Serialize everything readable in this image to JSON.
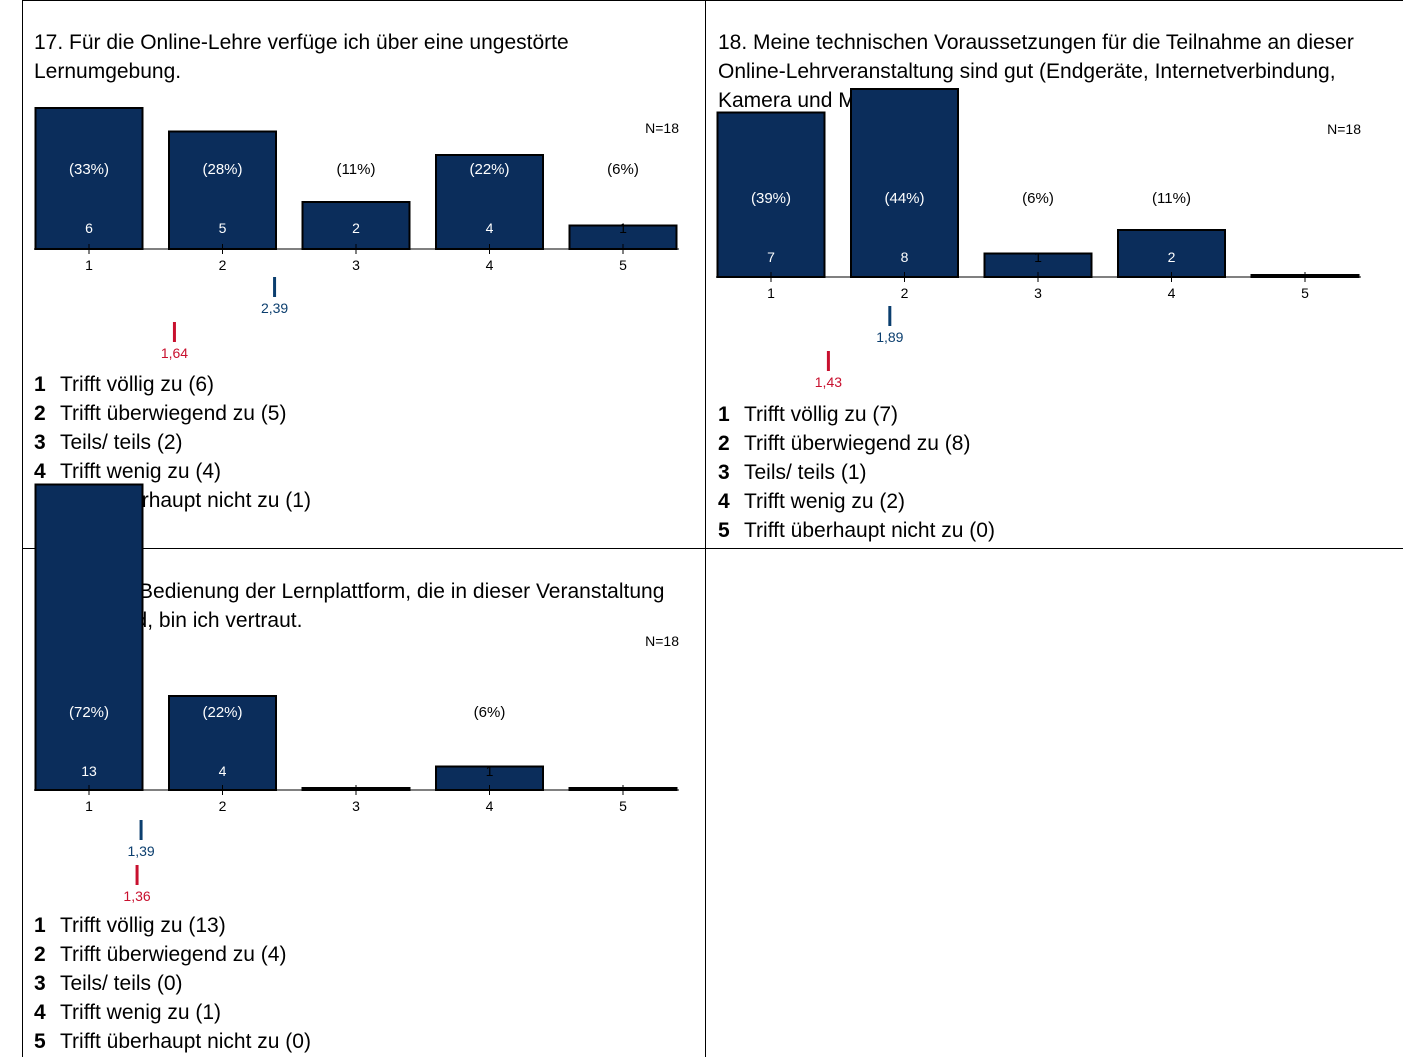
{
  "colors": {
    "bar": "#0b2d5b",
    "mean": "#0b3e6e",
    "median": "#c8102e"
  },
  "panels": [
    {
      "id": "q17",
      "title": "17. Für die Online-Lehre verfüge ich über eine ungestörte Lernumgebung.",
      "n_label": "N=18",
      "chart_data": {
        "type": "bar",
        "categories": [
          "1",
          "2",
          "3",
          "4",
          "5"
        ],
        "values": [
          6,
          5,
          2,
          4,
          1
        ],
        "count_labels": [
          "6",
          "5",
          "2",
          "4",
          "1"
        ],
        "percent_labels": [
          "(33%)",
          "(28%)",
          "(11%)",
          "(22%)",
          "(6%)"
        ],
        "ylim": [
          0,
          18
        ],
        "mean": 2.39,
        "mean_label": "2,39",
        "median": 1.64,
        "median_label": "1,64"
      },
      "legend": [
        {
          "num": "1",
          "text": "Trifft völlig zu (6)"
        },
        {
          "num": "2",
          "text": "Trifft überwiegend zu (5)"
        },
        {
          "num": "3",
          "text": "Teils/ teils (2)"
        },
        {
          "num": "4",
          "text": "Trifft wenig zu (4)"
        },
        {
          "num": "5",
          "text": "Trifft überhaupt nicht zu (1)"
        }
      ]
    },
    {
      "id": "q18",
      "title": "18. Meine technischen Voraussetzungen für die Teilnahme an dieser Online-Lehrveranstaltung sind gut (Endgeräte, Internetverbindung, Kamera und Mikrofon).",
      "n_label": "N=18",
      "chart_data": {
        "type": "bar",
        "categories": [
          "1",
          "2",
          "3",
          "4",
          "5"
        ],
        "values": [
          7,
          8,
          1,
          2,
          0
        ],
        "count_labels": [
          "7",
          "8",
          "1",
          "2",
          ""
        ],
        "percent_labels": [
          "(39%)",
          "(44%)",
          "(6%)",
          "(11%)",
          ""
        ],
        "ylim": [
          0,
          18
        ],
        "mean": 1.89,
        "mean_label": "1,89",
        "median": 1.43,
        "median_label": "1,43"
      },
      "legend": [
        {
          "num": "1",
          "text": "Trifft völlig zu (7)"
        },
        {
          "num": "2",
          "text": "Trifft überwiegend zu (8)"
        },
        {
          "num": "3",
          "text": "Teils/ teils (1)"
        },
        {
          "num": "4",
          "text": "Trifft wenig zu (2)"
        },
        {
          "num": "5",
          "text": "Trifft überhaupt nicht zu (0)"
        }
      ]
    },
    {
      "id": "q19",
      "title": "19. Mit der Bedienung der Lernplattform, die in dieser Veranstaltung genutzt wird, bin ich vertraut.",
      "n_label": "N=18",
      "chart_data": {
        "type": "bar",
        "categories": [
          "1",
          "2",
          "3",
          "4",
          "5"
        ],
        "values": [
          13,
          4,
          0,
          1,
          0
        ],
        "count_labels": [
          "13",
          "4",
          "",
          "1",
          ""
        ],
        "percent_labels": [
          "(72%)",
          "(22%)",
          "",
          "(6%)",
          ""
        ],
        "ylim": [
          0,
          18
        ],
        "mean": 1.39,
        "mean_label": "1,39",
        "median": 1.36,
        "median_label": "1,36"
      },
      "legend": [
        {
          "num": "1",
          "text": "Trifft völlig zu (13)"
        },
        {
          "num": "2",
          "text": "Trifft überwiegend zu (4)"
        },
        {
          "num": "3",
          "text": "Teils/ teils (0)"
        },
        {
          "num": "4",
          "text": "Trifft wenig zu (1)"
        },
        {
          "num": "5",
          "text": "Trifft überhaupt nicht zu (0)"
        }
      ]
    }
  ]
}
